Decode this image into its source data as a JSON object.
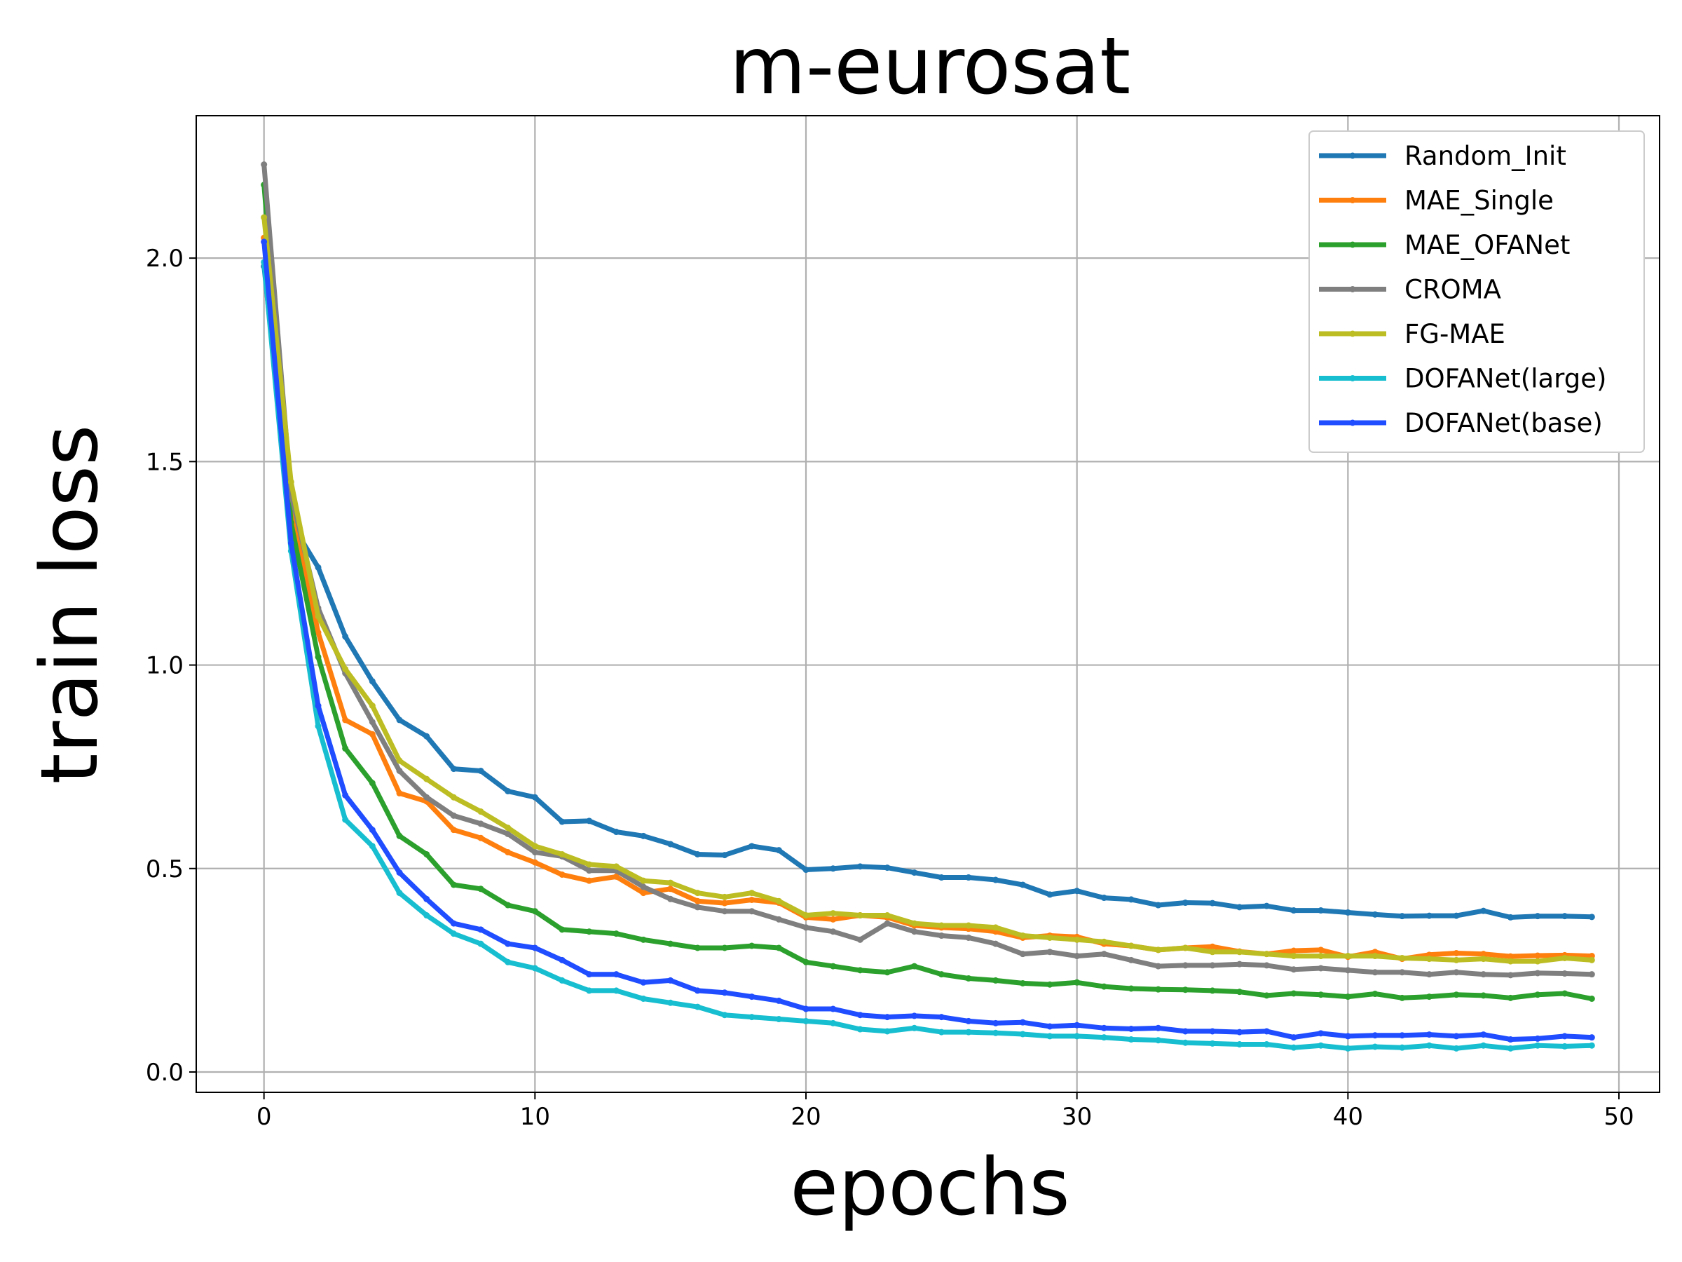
{
  "chart_data": {
    "type": "line",
    "title": "m-eurosat",
    "xlabel": "epochs",
    "ylabel": "train loss",
    "xlim": [
      -2.5,
      51.5
    ],
    "ylim": [
      -0.05,
      2.35
    ],
    "xticks": [
      0,
      10,
      20,
      30,
      40,
      50
    ],
    "yticks": [
      0.0,
      0.5,
      1.0,
      1.5,
      2.0
    ],
    "xtick_labels": [
      "0",
      "10",
      "20",
      "30",
      "40",
      "50"
    ],
    "ytick_labels": [
      "0.0",
      "0.5",
      "1.0",
      "1.5",
      "2.0"
    ],
    "grid": true,
    "legend_position": "top-right",
    "x": [
      0,
      1,
      2,
      3,
      4,
      5,
      6,
      7,
      8,
      9,
      10,
      11,
      12,
      13,
      14,
      15,
      16,
      17,
      18,
      19,
      20,
      21,
      22,
      23,
      24,
      25,
      26,
      27,
      28,
      29,
      30,
      31,
      32,
      33,
      34,
      35,
      36,
      37,
      38,
      39,
      40,
      41,
      42,
      43,
      44,
      45,
      46,
      47,
      48,
      49
    ],
    "series": [
      {
        "name": "Random_Init",
        "color": "#1f77b4",
        "values": [
          1.98,
          1.35,
          1.24,
          1.07,
          0.96,
          0.865,
          0.825,
          0.745,
          0.74,
          0.69,
          0.675,
          0.615,
          0.617,
          0.59,
          0.58,
          0.56,
          0.535,
          0.533,
          0.555,
          0.545,
          0.497,
          0.5,
          0.505,
          0.502,
          0.49,
          0.478,
          0.478,
          0.472,
          0.46,
          0.436,
          0.445,
          0.428,
          0.424,
          0.41,
          0.416,
          0.415,
          0.405,
          0.408,
          0.397,
          0.397,
          0.392,
          0.387,
          0.383,
          0.384,
          0.384,
          0.396,
          0.38,
          0.383,
          0.383,
          0.381
        ]
      },
      {
        "name": "MAE_Single",
        "color": "#ff7f0e",
        "values": [
          2.05,
          1.4,
          1.08,
          0.865,
          0.83,
          0.685,
          0.665,
          0.595,
          0.575,
          0.54,
          0.515,
          0.485,
          0.47,
          0.48,
          0.44,
          0.45,
          0.42,
          0.415,
          0.423,
          0.416,
          0.38,
          0.375,
          0.385,
          0.38,
          0.36,
          0.355,
          0.352,
          0.345,
          0.33,
          0.335,
          0.332,
          0.315,
          0.31,
          0.3,
          0.305,
          0.308,
          0.296,
          0.29,
          0.298,
          0.3,
          0.283,
          0.295,
          0.278,
          0.288,
          0.292,
          0.29,
          0.284,
          0.286,
          0.287,
          0.285
        ]
      },
      {
        "name": "MAE_OFANet",
        "color": "#2ca02c",
        "values": [
          2.18,
          1.35,
          1.02,
          0.795,
          0.71,
          0.58,
          0.535,
          0.46,
          0.45,
          0.41,
          0.395,
          0.35,
          0.345,
          0.34,
          0.325,
          0.315,
          0.305,
          0.305,
          0.31,
          0.305,
          0.27,
          0.26,
          0.25,
          0.245,
          0.26,
          0.24,
          0.23,
          0.225,
          0.218,
          0.215,
          0.22,
          0.21,
          0.205,
          0.203,
          0.202,
          0.2,
          0.197,
          0.188,
          0.193,
          0.19,
          0.185,
          0.192,
          0.182,
          0.185,
          0.19,
          0.188,
          0.182,
          0.19,
          0.193,
          0.18
        ]
      },
      {
        "name": "CROMA",
        "color": "#7f7f7f",
        "values": [
          2.23,
          1.42,
          1.14,
          0.98,
          0.86,
          0.74,
          0.675,
          0.63,
          0.61,
          0.585,
          0.54,
          0.53,
          0.495,
          0.495,
          0.455,
          0.425,
          0.405,
          0.395,
          0.395,
          0.375,
          0.355,
          0.345,
          0.325,
          0.365,
          0.345,
          0.335,
          0.33,
          0.315,
          0.29,
          0.295,
          0.285,
          0.29,
          0.275,
          0.26,
          0.262,
          0.262,
          0.265,
          0.262,
          0.252,
          0.255,
          0.25,
          0.245,
          0.245,
          0.24,
          0.245,
          0.24,
          0.238,
          0.243,
          0.242,
          0.24
        ]
      },
      {
        "name": "FG-MAE",
        "color": "#bcbd22",
        "values": [
          2.1,
          1.45,
          1.12,
          0.99,
          0.9,
          0.765,
          0.72,
          0.675,
          0.64,
          0.6,
          0.555,
          0.535,
          0.51,
          0.505,
          0.47,
          0.465,
          0.44,
          0.43,
          0.44,
          0.42,
          0.385,
          0.39,
          0.385,
          0.385,
          0.365,
          0.36,
          0.36,
          0.355,
          0.335,
          0.33,
          0.325,
          0.32,
          0.31,
          0.3,
          0.305,
          0.295,
          0.295,
          0.29,
          0.285,
          0.285,
          0.285,
          0.285,
          0.28,
          0.278,
          0.275,
          0.278,
          0.272,
          0.272,
          0.28,
          0.275
        ]
      },
      {
        "name": "DOFANet(large)",
        "color": "#17becf",
        "values": [
          1.99,
          1.28,
          0.85,
          0.62,
          0.555,
          0.44,
          0.385,
          0.34,
          0.315,
          0.27,
          0.255,
          0.225,
          0.2,
          0.2,
          0.18,
          0.17,
          0.16,
          0.14,
          0.135,
          0.13,
          0.125,
          0.12,
          0.105,
          0.1,
          0.108,
          0.098,
          0.098,
          0.096,
          0.093,
          0.088,
          0.088,
          0.085,
          0.08,
          0.078,
          0.072,
          0.07,
          0.068,
          0.068,
          0.06,
          0.065,
          0.058,
          0.062,
          0.06,
          0.065,
          0.058,
          0.065,
          0.058,
          0.065,
          0.063,
          0.065
        ]
      },
      {
        "name": "DOFANet(base)",
        "color": "#1f4dff",
        "values": [
          2.04,
          1.3,
          0.9,
          0.68,
          0.595,
          0.49,
          0.425,
          0.365,
          0.35,
          0.315,
          0.305,
          0.275,
          0.24,
          0.24,
          0.22,
          0.225,
          0.2,
          0.195,
          0.185,
          0.175,
          0.155,
          0.155,
          0.14,
          0.135,
          0.138,
          0.135,
          0.125,
          0.12,
          0.122,
          0.112,
          0.115,
          0.108,
          0.106,
          0.108,
          0.1,
          0.1,
          0.098,
          0.1,
          0.085,
          0.095,
          0.088,
          0.09,
          0.09,
          0.092,
          0.088,
          0.092,
          0.08,
          0.082,
          0.088,
          0.085
        ]
      }
    ]
  }
}
